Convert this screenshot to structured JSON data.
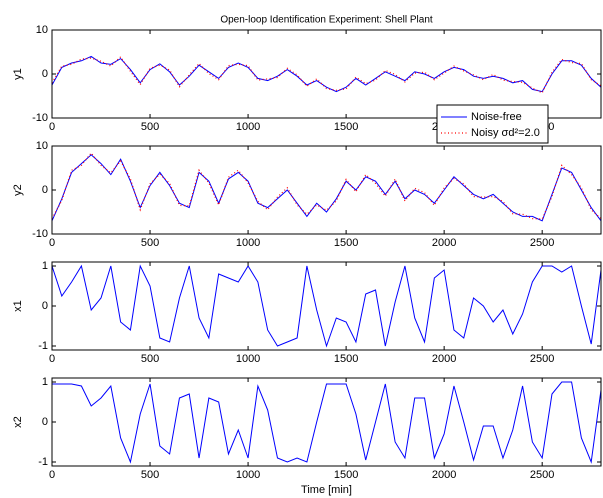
{
  "chart_data": [
    {
      "type": "line",
      "title": "Open-loop Identification Experiment: Shell Plant",
      "ylabel": "y1",
      "x": [
        0,
        50,
        100,
        150,
        200,
        250,
        300,
        350,
        400,
        450,
        500,
        550,
        600,
        650,
        700,
        750,
        800,
        850,
        900,
        950,
        1000,
        1050,
        1100,
        1150,
        1200,
        1250,
        1300,
        1350,
        1400,
        1450,
        1500,
        1550,
        1600,
        1650,
        1700,
        1750,
        1800,
        1850,
        1900,
        1950,
        2000,
        2050,
        2100,
        2150,
        2200,
        2250,
        2300,
        2350,
        2400,
        2450,
        2500,
        2550,
        2600,
        2650,
        2700,
        2750,
        2800
      ],
      "xlim": [
        0,
        2800
      ],
      "xticks": [
        0,
        500,
        1000,
        1500,
        2000,
        2500
      ],
      "ylim": [
        -10,
        10
      ],
      "yticks": [
        -10,
        0,
        10
      ],
      "legend": "lower right",
      "series": [
        {
          "name": "Noise-free",
          "color": "#0000ff",
          "style": "solid",
          "values": [
            -2.5,
            1.5,
            2.5,
            3,
            4,
            2.5,
            2.2,
            3.5,
            1,
            -2,
            1,
            2.3,
            0.5,
            -2.5,
            -0.5,
            2,
            0.5,
            -1,
            1.5,
            2.5,
            1.5,
            -1,
            -1.5,
            -0.5,
            1,
            -0.5,
            -2.5,
            -1.5,
            -3,
            -4,
            -3,
            -1,
            -2.5,
            -1,
            0.5,
            -0.5,
            -1.5,
            0.5,
            0,
            -1,
            0.5,
            1.5,
            1,
            -0.5,
            -1,
            -0.5,
            -1,
            -2,
            -1.5,
            -3.5,
            -4,
            0,
            3,
            3,
            2,
            -1,
            -3
          ]
        },
        {
          "name": "Noisy σd²=2.0",
          "color": "#ff0000",
          "style": "dotted",
          "values": [
            -2.0,
            1.8,
            2.2,
            3.4,
            3.6,
            2.9,
            1.8,
            3.9,
            0.6,
            -2.4,
            1.3,
            2.0,
            0.9,
            -2.9,
            -0.2,
            2.4,
            0.1,
            -1.3,
            1.9,
            2.2,
            1.9,
            -1.4,
            -1.1,
            -0.8,
            1.3,
            -0.2,
            -2.8,
            -1.1,
            -3.3,
            -3.7,
            -3.4,
            -0.7,
            -2.2,
            -1.4,
            0.8,
            -0.1,
            -1.8,
            0.2,
            0.4,
            -1.3,
            0.2,
            1.8,
            0.7,
            -0.2,
            -1.3,
            -0.1,
            -1.4,
            -1.7,
            -1.9,
            -3.2,
            -4.3,
            0.4,
            3.3,
            2.6,
            2.4,
            -1.3,
            -2.7
          ]
        }
      ]
    },
    {
      "type": "line",
      "ylabel": "y2",
      "x": [
        0,
        50,
        100,
        150,
        200,
        250,
        300,
        350,
        400,
        450,
        500,
        550,
        600,
        650,
        700,
        750,
        800,
        850,
        900,
        950,
        1000,
        1050,
        1100,
        1150,
        1200,
        1250,
        1300,
        1350,
        1400,
        1450,
        1500,
        1550,
        1600,
        1650,
        1700,
        1750,
        1800,
        1850,
        1900,
        1950,
        2000,
        2050,
        2100,
        2150,
        2200,
        2250,
        2300,
        2350,
        2400,
        2450,
        2500,
        2550,
        2600,
        2650,
        2700,
        2750,
        2800
      ],
      "xlim": [
        0,
        2800
      ],
      "xticks": [
        0,
        500,
        1000,
        1500,
        2000,
        2500
      ],
      "ylim": [
        -10,
        10
      ],
      "yticks": [
        -10,
        0,
        10
      ],
      "series": [
        {
          "name": "Noise-free",
          "color": "#0000ff",
          "style": "solid",
          "values": [
            -7,
            -2,
            4,
            6,
            8,
            6,
            3.5,
            7,
            2,
            -4,
            1,
            4,
            1,
            -3,
            -4,
            4,
            2,
            -3,
            2.5,
            4,
            2,
            -3,
            -4,
            -2,
            0,
            -3,
            -6,
            -3,
            -5,
            -2,
            2,
            0,
            3,
            2,
            -1,
            2,
            -2,
            0,
            -1,
            -3,
            0,
            3,
            1,
            -1,
            -2,
            -1,
            -3,
            -5,
            -6,
            -6,
            -7,
            -1,
            5,
            4,
            0,
            -4,
            -7
          ]
        },
        {
          "name": "Noisy σd²=2.0",
          "color": "#ff0000",
          "style": "dotted",
          "values": [
            -6.5,
            -2.4,
            4.5,
            5.6,
            8.4,
            5.6,
            3.9,
            6.6,
            2.5,
            -4.5,
            1.4,
            3.6,
            1.5,
            -3.5,
            -3.6,
            4.5,
            1.6,
            -3.4,
            2.9,
            4.5,
            1.6,
            -2.6,
            -4.5,
            -1.6,
            0.5,
            -3.4,
            -5.5,
            -3.4,
            -4.6,
            -2.5,
            2.4,
            -0.4,
            3.5,
            1.5,
            -1.4,
            2.5,
            -2.5,
            0.4,
            -0.6,
            -3.5,
            0.5,
            2.6,
            1.4,
            -1.5,
            -1.6,
            -1.5,
            -2.6,
            -5.4,
            -5.5,
            -6.5,
            -6.6,
            -1.5,
            5.6,
            3.5,
            0.5,
            -4.5,
            -6.5
          ]
        }
      ]
    },
    {
      "type": "line",
      "ylabel": "x1",
      "x": [
        0,
        50,
        100,
        150,
        200,
        250,
        300,
        350,
        400,
        450,
        500,
        550,
        600,
        650,
        700,
        750,
        800,
        850,
        900,
        950,
        1000,
        1050,
        1100,
        1150,
        1200,
        1250,
        1300,
        1350,
        1400,
        1450,
        1500,
        1550,
        1600,
        1650,
        1700,
        1750,
        1800,
        1850,
        1900,
        1950,
        2000,
        2050,
        2100,
        2150,
        2200,
        2250,
        2300,
        2350,
        2400,
        2450,
        2500,
        2550,
        2600,
        2650,
        2700,
        2750,
        2800
      ],
      "xlim": [
        0,
        2800
      ],
      "xticks": [
        0,
        500,
        1000,
        1500,
        2000,
        2500
      ],
      "ylim": [
        -1.1,
        1.1
      ],
      "yticks": [
        -1,
        0,
        1
      ],
      "series": [
        {
          "color": "#0000ff",
          "style": "solid",
          "values": [
            1.0,
            0.25,
            0.6,
            1.0,
            -0.1,
            0.2,
            1.0,
            -0.4,
            -0.6,
            1.0,
            0.5,
            -0.8,
            -0.9,
            0.2,
            1.0,
            -0.3,
            -0.8,
            0.8,
            0.7,
            0.6,
            1.0,
            0.6,
            -0.6,
            -1.0,
            -0.9,
            -0.8,
            1.0,
            -0.1,
            -1.0,
            -0.3,
            -0.4,
            -0.9,
            0.3,
            0.4,
            -1.0,
            0.1,
            1.0,
            -0.3,
            -0.9,
            0.7,
            0.9,
            -0.6,
            -0.8,
            0.2,
            0.0,
            -0.4,
            -0.1,
            -0.7,
            -0.2,
            0.6,
            1.0,
            1.0,
            0.85,
            1.0,
            0.0,
            -0.95,
            0.9
          ]
        }
      ]
    },
    {
      "type": "line",
      "ylabel": "x2",
      "xlabel": "Time [min]",
      "x": [
        0,
        50,
        100,
        150,
        200,
        250,
        300,
        350,
        400,
        450,
        500,
        550,
        600,
        650,
        700,
        750,
        800,
        850,
        900,
        950,
        1000,
        1050,
        1100,
        1150,
        1200,
        1250,
        1300,
        1350,
        1400,
        1450,
        1500,
        1550,
        1600,
        1650,
        1700,
        1750,
        1800,
        1850,
        1900,
        1950,
        2000,
        2050,
        2100,
        2150,
        2200,
        2250,
        2300,
        2350,
        2400,
        2450,
        2500,
        2550,
        2600,
        2650,
        2700,
        2750,
        2800
      ],
      "xlim": [
        0,
        2800
      ],
      "xticks": [
        0,
        500,
        1000,
        1500,
        2000,
        2500
      ],
      "ylim": [
        -1.1,
        1.1
      ],
      "yticks": [
        -1,
        0,
        1
      ],
      "series": [
        {
          "color": "#0000ff",
          "style": "solid",
          "values": [
            0.95,
            0.95,
            0.95,
            0.9,
            0.4,
            0.6,
            0.9,
            -0.4,
            -1.0,
            0.2,
            0.95,
            -0.6,
            -0.8,
            0.6,
            0.7,
            -0.9,
            0.6,
            0.5,
            -0.8,
            -0.2,
            -0.9,
            0.9,
            0.3,
            -0.9,
            -1.0,
            -0.9,
            -1.0,
            0.0,
            0.95,
            0.95,
            0.95,
            0.2,
            -0.95,
            0.0,
            0.95,
            -0.5,
            -0.9,
            0.6,
            0.6,
            -0.9,
            -0.3,
            0.9,
            0.0,
            -0.95,
            -0.1,
            -0.1,
            -0.9,
            -0.2,
            0.9,
            -0.5,
            -0.9,
            0.7,
            1.0,
            1.0,
            -0.4,
            -1.0,
            0.8
          ]
        }
      ]
    }
  ]
}
